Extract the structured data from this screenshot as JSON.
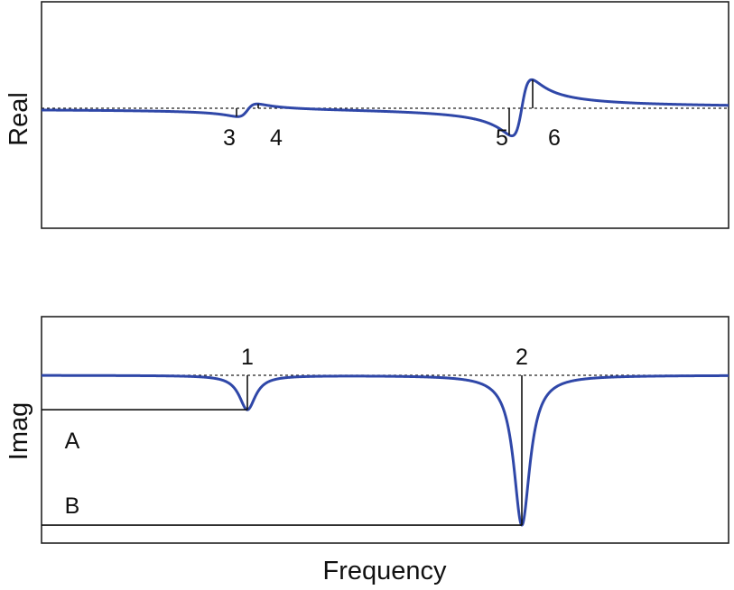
{
  "chart_data": [
    {
      "type": "line",
      "ylabel": "Real",
      "series": [
        {
          "name": "",
          "color": "#2f47a8"
        }
      ],
      "markers": [
        {
          "label": "3",
          "x": 262
        },
        {
          "label": "4",
          "x": 286
        },
        {
          "label": "5",
          "x": 564
        },
        {
          "label": "6",
          "x": 590
        }
      ],
      "zero_line": "dashed"
    },
    {
      "type": "line",
      "ylabel": "Imag",
      "xlabel": "Frequency",
      "series": [
        {
          "name": "",
          "color": "#2f47a8"
        }
      ],
      "markers": [
        {
          "label": "1",
          "x": 274
        },
        {
          "label": "2",
          "x": 578
        }
      ],
      "levels": [
        {
          "label": "A"
        },
        {
          "label": "B"
        }
      ],
      "zero_line": "dashed"
    }
  ]
}
